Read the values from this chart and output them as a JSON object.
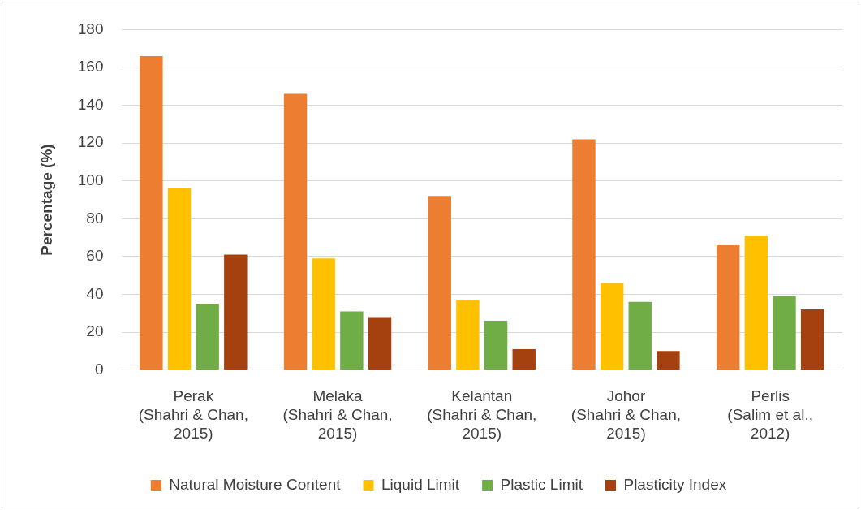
{
  "chart_data": {
    "type": "bar",
    "ylabel": "Percentage (%)",
    "categories": [
      "Perak\n(Shahri & Chan,\n2015)",
      "Melaka\n(Shahri & Chan,\n2015)",
      "Kelantan\n(Shahri & Chan,\n2015)",
      "Johor\n(Shahri & Chan,\n2015)",
      "Perlis\n(Salim et al.,\n2012)"
    ],
    "series": [
      {
        "name": "Natural Moisture Content",
        "color": "#ed7d31",
        "values": [
          166,
          146,
          92,
          122,
          66
        ]
      },
      {
        "name": "Liquid Limit",
        "color": "#ffc000",
        "values": [
          96,
          59,
          37,
          46,
          71
        ]
      },
      {
        "name": "Plastic Limit",
        "color": "#70ad47",
        "values": [
          35,
          31,
          26,
          36,
          39
        ]
      },
      {
        "name": "Plasticity Index",
        "color": "#a5410e",
        "values": [
          61,
          28,
          11,
          10,
          32
        ]
      }
    ],
    "ylim": [
      0,
      180
    ],
    "yticks": [
      0,
      20,
      40,
      60,
      80,
      100,
      120,
      140,
      160,
      180
    ],
    "grid": "y",
    "legend": "bottom"
  }
}
